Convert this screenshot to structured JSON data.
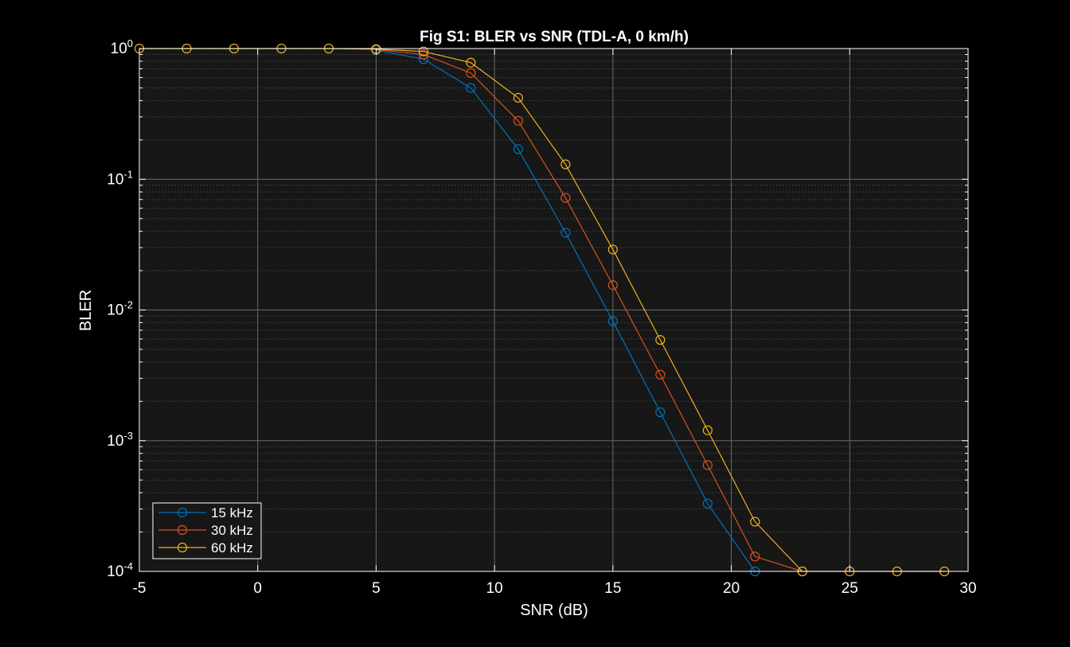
{
  "colors": {
    "figure_background": "#000000",
    "axes_background": "#171717",
    "grid_major": "#6a6a6a",
    "grid_minor": "#3c3c3c",
    "axis_and_text": "#ffffff",
    "series_15": "#0072bd",
    "series_30": "#d95319",
    "series_60": "#edb120"
  },
  "chart_data": {
    "type": "line",
    "title": "Fig S1: BLER vs SNR (TDL-A, 0 km/h)",
    "xlabel": "SNR (dB)",
    "ylabel": "BLER",
    "xlim": [
      -5,
      30
    ],
    "ylim": [
      0.0001,
      1
    ],
    "yscale": "log",
    "grid": true,
    "minor_grid": true,
    "marker": "circle",
    "x_ticks": [
      "-5",
      "0",
      "5",
      "10",
      "15",
      "20",
      "25",
      "30"
    ],
    "y_ticks": [
      {
        "base": "10",
        "exp": "0"
      },
      {
        "base": "10",
        "exp": "-1"
      },
      {
        "base": "10",
        "exp": "-2"
      },
      {
        "base": "10",
        "exp": "-3"
      },
      {
        "base": "10",
        "exp": "-4"
      }
    ],
    "legend_position": "bottom-left",
    "series": [
      {
        "name": "15 kHz",
        "color": "#0072bd",
        "x": [
          5,
          7,
          9,
          11,
          13,
          15,
          17,
          19,
          21
        ],
        "y": [
          0.97,
          0.83,
          0.5,
          0.17,
          0.039,
          0.0082,
          0.00165,
          0.00033,
          0.0001
        ]
      },
      {
        "name": "30 kHz",
        "color": "#d95319",
        "x": [
          5,
          7,
          9,
          11,
          13,
          15,
          17,
          19,
          21,
          23
        ],
        "y": [
          0.98,
          0.9,
          0.65,
          0.28,
          0.072,
          0.0155,
          0.0032,
          0.00065,
          0.00013,
          0.0001
        ]
      },
      {
        "name": "60 kHz",
        "color": "#edb120",
        "x": [
          -5,
          -3,
          -1,
          1,
          3,
          5,
          7,
          9,
          11,
          13,
          15,
          17,
          19,
          21,
          23,
          25,
          27,
          29
        ],
        "y": [
          1,
          1,
          1,
          1,
          1,
          0.99,
          0.95,
          0.78,
          0.42,
          0.13,
          0.029,
          0.0059,
          0.0012,
          0.00024,
          0.0001,
          0.0001,
          0.0001,
          0.0001
        ]
      }
    ]
  }
}
